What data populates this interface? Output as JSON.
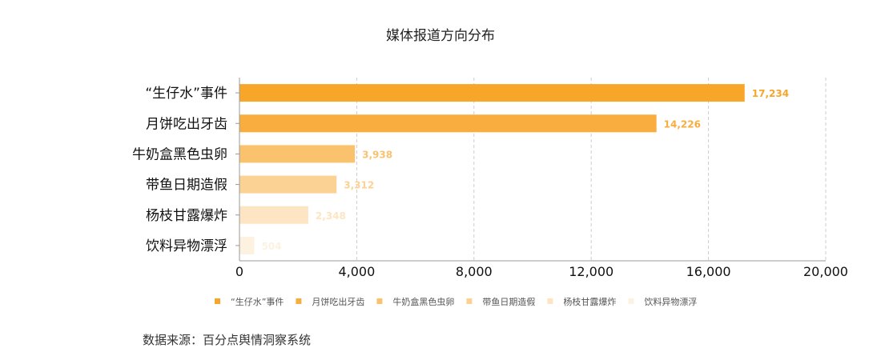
{
  "chart_data": {
    "type": "bar",
    "orientation": "horizontal",
    "title": "媒体报道方向分布",
    "categories": [
      "“生仔水”事件",
      "月饼吃出牙齿",
      "牛奶盒黑色虫卵",
      "带鱼日期造假",
      "杨枝甘露爆炸",
      "饮料异物漂浮"
    ],
    "values": [
      17234,
      14226,
      3938,
      3312,
      2348,
      504
    ],
    "data_labels": [
      "17,234",
      "14,226",
      "3,938",
      "3,312",
      "2,348",
      "504"
    ],
    "colors": [
      "#F7A62A",
      "#F8AD3E",
      "#FBC26E",
      "#FCD194",
      "#FDE5C3",
      "#FDF1E0"
    ],
    "xlim": [
      0,
      20000
    ],
    "xticks": [
      0,
      4000,
      8000,
      12000,
      16000,
      20000
    ],
    "xtick_labels": [
      "0",
      "4,000",
      "8,000",
      "12,000",
      "16,000",
      "20,000"
    ],
    "grid": "vertical dashed",
    "legend_position": "bottom",
    "legend": [
      "“生仔水”事件",
      "月饼吃出牙齿",
      "牛奶盒黑色虫卵",
      "带鱼日期造假",
      "杨枝甘露爆炸",
      "饮料异物漂浮"
    ]
  },
  "source": "数据来源：百分点舆情洞察系统"
}
